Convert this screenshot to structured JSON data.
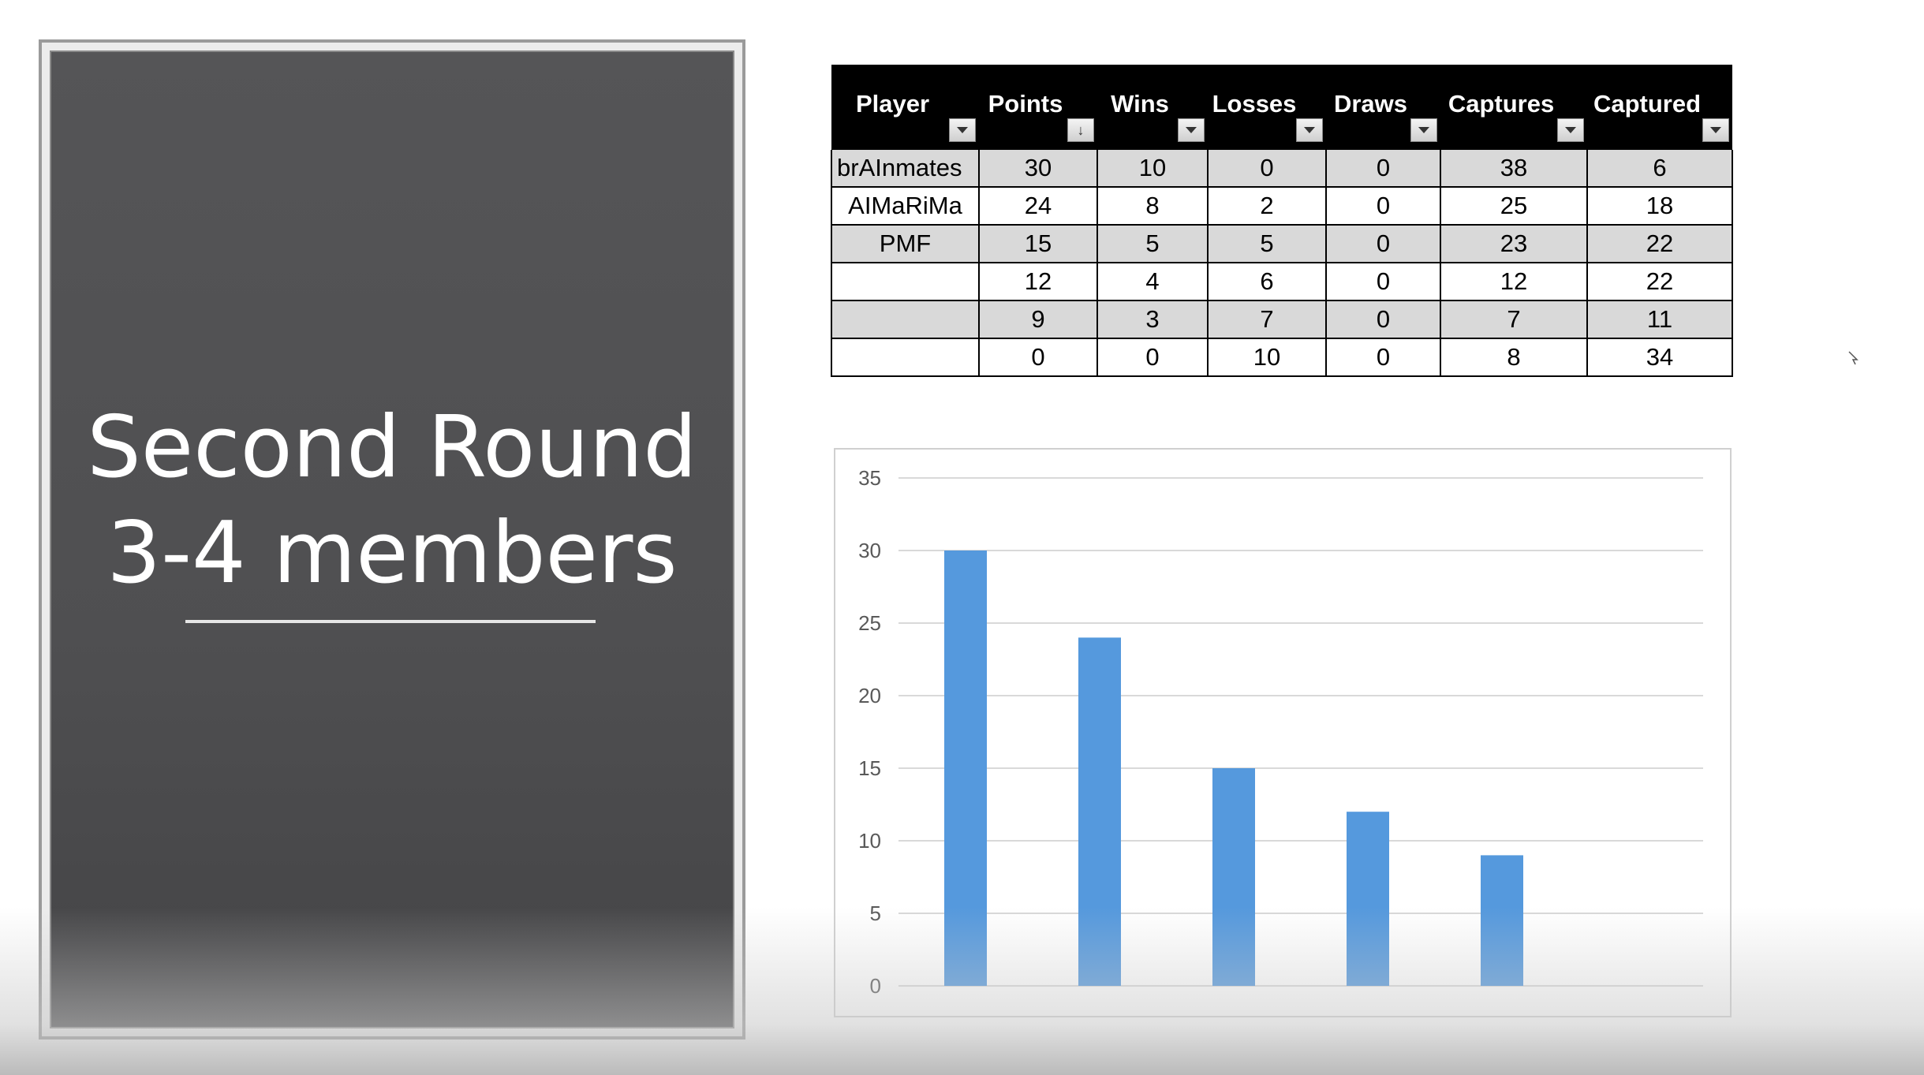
{
  "slide": {
    "title_line1": "Second Round",
    "title_line2": "3-4 members"
  },
  "table": {
    "headers": [
      "Player",
      "Points",
      "Wins",
      "Losses",
      "Draws",
      "Captures",
      "Captured"
    ],
    "sorted_column": "Points",
    "rows": [
      {
        "player": "brAInmates",
        "points": "30",
        "wins": "10",
        "losses": "0",
        "draws": "0",
        "captures": "38",
        "captured": "6"
      },
      {
        "player": "AIMaRiMa",
        "points": "24",
        "wins": "8",
        "losses": "2",
        "draws": "0",
        "captures": "25",
        "captured": "18"
      },
      {
        "player": "PMF",
        "points": "15",
        "wins": "5",
        "losses": "5",
        "draws": "0",
        "captures": "23",
        "captured": "22"
      },
      {
        "player": "",
        "points": "12",
        "wins": "4",
        "losses": "6",
        "draws": "0",
        "captures": "12",
        "captured": "22"
      },
      {
        "player": "",
        "points": "9",
        "wins": "3",
        "losses": "7",
        "draws": "0",
        "captures": "7",
        "captured": "11"
      },
      {
        "player": "",
        "points": "0",
        "wins": "0",
        "losses": "10",
        "draws": "0",
        "captures": "8",
        "captured": "34"
      }
    ],
    "header_color": "#000000",
    "band_color": "#d9d9d9"
  },
  "chart_data": {
    "type": "bar",
    "title": "",
    "xlabel": "",
    "ylabel": "",
    "categories": [
      "",
      "",
      "",
      "",
      "",
      ""
    ],
    "values": [
      30,
      24,
      15,
      12,
      9,
      0
    ],
    "ylim": [
      0,
      35
    ],
    "yticks": [
      "0",
      "5",
      "10",
      "15",
      "20",
      "25",
      "30",
      "35"
    ],
    "grid": true,
    "legend": "none",
    "bar_color": "#5599dd"
  }
}
